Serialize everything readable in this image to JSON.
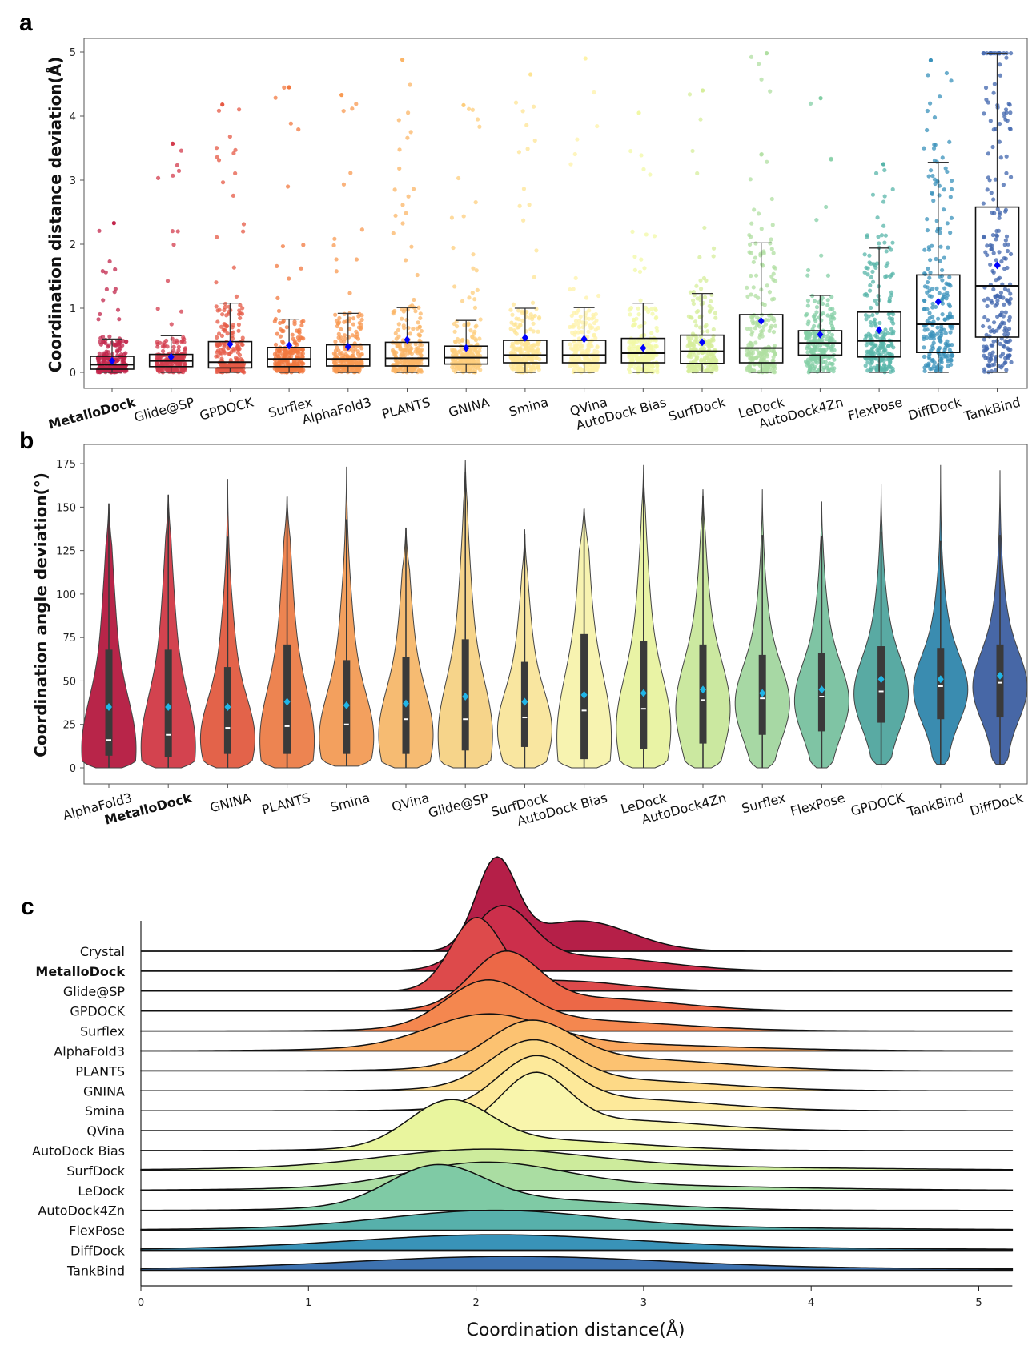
{
  "panels": {
    "a": "a",
    "b": "b",
    "c": "c"
  },
  "chart_data": [
    {
      "type": "box",
      "panel": "a",
      "ylabel": "Coordination distance deviation(Å)",
      "ylim": [
        0,
        5
      ],
      "yticks": [
        0,
        1,
        2,
        3,
        4,
        5
      ],
      "bold_category": "MetalloDock",
      "mean_marker_color": "#0000ff",
      "categories": [
        "MetalloDock",
        "Glide@SP",
        "GPDOCK",
        "Surflex",
        "AlphaFold3",
        "PLANTS",
        "GNINA",
        "Smina",
        "QVina",
        "AutoDock Bias",
        "SurfDock",
        "LeDock",
        "AutoDock4Zn",
        "FlexPose",
        "DiffDock",
        "TankBind"
      ],
      "colors": [
        "#c2254b",
        "#d33c4e",
        "#e65a45",
        "#f2783f",
        "#f89a52",
        "#fbb567",
        "#fdcd7c",
        "#fde494",
        "#fdf2a8",
        "#f1f8a6",
        "#d6ee9b",
        "#b0dfa2",
        "#84cfa5",
        "#58b5aa",
        "#3a92bb",
        "#4066ad"
      ],
      "q1": [
        0.05,
        0.09,
        0.07,
        0.09,
        0.1,
        0.1,
        0.13,
        0.15,
        0.15,
        0.15,
        0.14,
        0.15,
        0.27,
        0.24,
        0.31,
        0.55
      ],
      "median": [
        0.12,
        0.18,
        0.16,
        0.21,
        0.21,
        0.22,
        0.23,
        0.27,
        0.27,
        0.3,
        0.33,
        0.38,
        0.46,
        0.49,
        0.75,
        1.35
      ],
      "q3": [
        0.25,
        0.28,
        0.48,
        0.39,
        0.43,
        0.47,
        0.41,
        0.5,
        0.5,
        0.53,
        0.58,
        0.9,
        0.65,
        0.94,
        1.52,
        2.58
      ],
      "whisker_low": [
        0,
        0,
        0,
        0,
        0,
        0,
        0,
        0,
        0,
        0,
        0,
        0,
        0,
        0,
        0,
        0
      ],
      "whisker_high": [
        0.52,
        0.57,
        1.08,
        0.83,
        0.92,
        1.01,
        0.81,
        1.0,
        1.01,
        1.08,
        1.23,
        2.02,
        1.2,
        1.94,
        3.28,
        4.98
      ],
      "mean": [
        0.18,
        0.24,
        0.44,
        0.42,
        0.4,
        0.51,
        0.38,
        0.54,
        0.52,
        0.38,
        0.47,
        0.8,
        0.59,
        0.66,
        1.1,
        1.67
      ],
      "max": [
        2.33,
        3.57,
        4.18,
        4.45,
        4.33,
        4.88,
        4.17,
        4.65,
        4.9,
        4.05,
        4.4,
        4.98,
        4.28,
        3.25,
        4.87,
        4.98
      ]
    },
    {
      "type": "violin",
      "panel": "b",
      "ylabel": "Coordination angle deviation(°)",
      "ylim": [
        0,
        180
      ],
      "yticks": [
        0,
        25,
        50,
        75,
        100,
        125,
        150,
        175
      ],
      "bold_category": "MetalloDock",
      "mean_marker_color": "#1fb4e6",
      "categories": [
        "AlphaFold3",
        "MetalloDock",
        "GNINA",
        "PLANTS",
        "Smina",
        "QVina",
        "Glide@SP",
        "SurfDock",
        "AutoDock Bias",
        "LeDock",
        "AutoDock4Zn",
        "Surflex",
        "FlexPose",
        "GPDOCK",
        "TankBind",
        "DiffDock"
      ],
      "colors": [
        "#b82549",
        "#d3434f",
        "#e3634a",
        "#ed8451",
        "#f3a05e",
        "#f6bb72",
        "#f6d48a",
        "#f9e6a0",
        "#f7f3b0",
        "#e9f3a5",
        "#cbe8a0",
        "#a7d8a4",
        "#7fc4a4",
        "#59aaa3",
        "#3a8cb0",
        "#4767a6"
      ],
      "min": [
        0,
        0,
        0,
        0,
        1,
        0,
        0,
        0,
        0,
        0,
        0,
        0,
        0,
        2,
        2,
        2
      ],
      "q1": [
        7,
        6,
        8,
        8,
        8,
        8,
        10,
        12,
        5,
        11,
        14,
        19,
        21,
        26,
        28,
        29
      ],
      "median": [
        16,
        19,
        23,
        24,
        25,
        28,
        28,
        29,
        33,
        34,
        39,
        40,
        41,
        44,
        47,
        49
      ],
      "q3": [
        68,
        68,
        58,
        71,
        62,
        64,
        74,
        61,
        77,
        73,
        71,
        65,
        66,
        70,
        69,
        71
      ],
      "mean": [
        35,
        35,
        35,
        38,
        36,
        37,
        41,
        38,
        42,
        43,
        45,
        43,
        45,
        51,
        51,
        53
      ],
      "max": [
        152,
        157,
        166,
        156,
        173,
        138,
        177,
        137,
        149,
        174,
        160,
        160,
        153,
        163,
        174,
        171
      ]
    },
    {
      "type": "ridgeline",
      "panel": "c",
      "xlabel": "Coordination distance(Å)",
      "xlim": [
        0,
        5.2
      ],
      "xticks": [
        0,
        1,
        2,
        3,
        4,
        5
      ],
      "bold_category": "MetalloDock",
      "categories": [
        "Crystal",
        "MetalloDock",
        "Glide@SP",
        "GPDOCK",
        "Surflex",
        "AlphaFold3",
        "PLANTS",
        "GNINA",
        "Smina",
        "QVina",
        "AutoDock Bias",
        "SurfDock",
        "LeDock",
        "AutoDock4Zn",
        "FlexPose",
        "DiffDock",
        "TankBind"
      ],
      "colors": [
        "#b51f48",
        "#cc2f4b",
        "#dd4a4b",
        "#ec6847",
        "#f4874f",
        "#f9a75e",
        "#fcc271",
        "#fdd986",
        "#fde99a",
        "#f9f5ac",
        "#e9f59e",
        "#cdeb9c",
        "#aadda2",
        "#7fcaa5",
        "#57b0ab",
        "#3993b8",
        "#3d72b0"
      ],
      "peak": [
        2.12,
        2.15,
        2.0,
        2.17,
        2.06,
        2.06,
        2.32,
        2.33,
        2.35,
        2.35,
        1.84,
        2.05,
        2.05,
        1.76,
        2.1,
        2.1,
        2.2
      ],
      "spread": [
        0.12,
        0.18,
        0.15,
        0.2,
        0.24,
        0.34,
        0.25,
        0.24,
        0.22,
        0.2,
        0.24,
        0.6,
        0.45,
        0.28,
        0.62,
        0.8,
        0.9
      ],
      "tail": [
        0.35,
        0.25,
        0.15,
        0.25,
        0.25,
        0.25,
        0.3,
        0.25,
        0.25,
        0.2,
        0.25,
        0.25,
        0.25,
        0.3,
        0.2,
        0.2,
        0.2
      ]
    }
  ]
}
